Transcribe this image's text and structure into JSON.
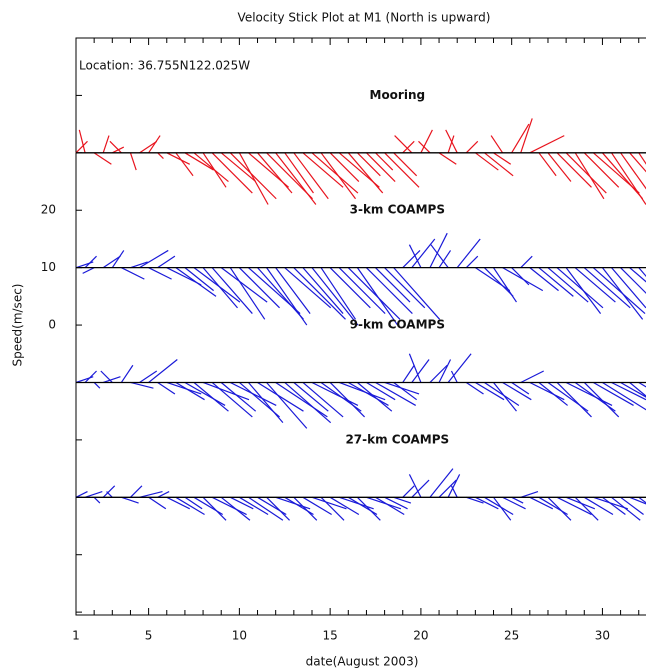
{
  "chart_data": {
    "type": "stick",
    "title": "Velocity Stick Plot at M1 (North is upward)",
    "annotation": "Location: 36.755N122.025W",
    "xlabel": "date(August 2003)",
    "ylabel": "Speed(m/sec)",
    "xlim": [
      1,
      32.4
    ],
    "ylim": [
      -50.5,
      50
    ],
    "xticks": [
      1,
      {
        "value": 2,
        "label": null
      },
      {
        "value": 3,
        "label": null
      },
      {
        "value": 4,
        "label": null
      },
      5,
      {
        "value": 6,
        "label": null
      },
      {
        "value": 7,
        "label": null
      },
      {
        "value": 8,
        "label": null
      },
      {
        "value": 9,
        "label": null
      },
      10,
      {
        "value": 11,
        "label": null
      },
      {
        "value": 12,
        "label": null
      },
      {
        "value": 13,
        "label": null
      },
      {
        "value": 14,
        "label": null
      },
      15,
      {
        "value": 16,
        "label": null
      },
      {
        "value": 17,
        "label": null
      },
      {
        "value": 18,
        "label": null
      },
      {
        "value": 19,
        "label": null
      },
      20,
      {
        "value": 21,
        "label": null
      },
      {
        "value": 22,
        "label": null
      },
      {
        "value": 23,
        "label": null
      },
      {
        "value": 24,
        "label": null
      },
      25,
      {
        "value": 26,
        "label": null
      },
      {
        "value": 27,
        "label": null
      },
      {
        "value": 28,
        "label": null
      },
      {
        "value": 29,
        "label": null
      },
      30,
      {
        "value": 31,
        "label": null
      },
      {
        "value": 32,
        "label": null
      }
    ],
    "yticks": [
      {
        "value": -50,
        "label": null
      },
      {
        "value": -40,
        "label": null
      },
      {
        "value": -30,
        "label": null
      },
      {
        "value": -20,
        "label": null
      },
      {
        "value": -10,
        "label": null
      },
      0,
      10,
      20,
      {
        "value": 30,
        "label": null
      },
      {
        "value": 40,
        "label": null
      }
    ],
    "x": [
      1,
      1.5,
      2,
      2.5,
      3,
      3.5,
      4,
      4.5,
      5,
      5.5,
      6,
      6.5,
      7,
      7.5,
      8,
      8.5,
      9,
      9.5,
      10,
      10.5,
      11,
      11.5,
      12,
      12.5,
      13,
      13.5,
      14,
      14.5,
      15,
      15.5,
      16,
      16.5,
      17,
      17.5,
      18,
      18.5,
      19,
      19.5,
      20,
      20.5,
      21,
      21.5,
      22,
      22.5,
      23,
      23.5,
      24,
      24.5,
      25,
      25.5,
      26,
      26.5,
      27,
      27.5,
      28,
      28.5,
      29,
      29.5,
      30,
      30.5,
      31,
      31.5,
      32
    ],
    "series": [
      {
        "name": "Mooring",
        "color": "#e8141e",
        "baseline": 30,
        "u": [
          2,
          -1,
          3,
          1,
          2,
          -2,
          1,
          3,
          2,
          1,
          4,
          3,
          5,
          6,
          4,
          7,
          6,
          8,
          5,
          7,
          6,
          8,
          7,
          5,
          6,
          7,
          8,
          6,
          5,
          7,
          6,
          4,
          5,
          3,
          6,
          4,
          2,
          -3,
          2,
          -2,
          3,
          1,
          -2,
          2,
          4,
          5,
          3,
          -2,
          3,
          2,
          6,
          3,
          4,
          6,
          7,
          5,
          6,
          8,
          7,
          6,
          5,
          7,
          6
        ],
        "v": [
          2,
          4,
          -2,
          3,
          1,
          2,
          -3,
          2,
          3,
          -1,
          -2,
          -4,
          -3,
          -5,
          -6,
          -7,
          -5,
          -8,
          -9,
          -6,
          -7,
          -8,
          -9,
          -7,
          -8,
          -6,
          -7,
          -8,
          -5,
          -6,
          -7,
          -4,
          -5,
          -3,
          -6,
          -4,
          2,
          3,
          4,
          2,
          -2,
          3,
          4,
          2,
          -3,
          -4,
          -2,
          3,
          5,
          6,
          3,
          -4,
          -5,
          -6,
          -7,
          -8,
          -6,
          -7,
          -8,
          -9,
          -7,
          -8,
          -9
        ]
      },
      {
        "name": "3-km COAMPS",
        "color": "#1a1ad8",
        "baseline": 10,
        "u": [
          3,
          2,
          -2,
          3,
          2,
          4,
          3,
          5,
          4,
          3,
          6,
          7,
          5,
          8,
          6,
          7,
          8,
          6,
          7,
          9,
          8,
          7,
          6,
          8,
          9,
          7,
          8,
          6,
          7,
          8,
          9,
          7,
          8,
          6,
          7,
          8,
          3,
          4,
          -2,
          3,
          2,
          -3,
          4,
          2,
          6,
          5,
          4,
          7,
          3,
          2,
          5,
          6,
          7,
          8,
          6,
          7,
          8,
          9,
          7,
          6,
          8,
          7,
          6
        ],
        "v": [
          1,
          2,
          -1,
          2,
          3,
          -2,
          1,
          3,
          -2,
          2,
          -3,
          -5,
          -4,
          -6,
          -7,
          -8,
          -6,
          -9,
          -7,
          -8,
          -9,
          -10,
          -8,
          -7,
          -9,
          -8,
          -10,
          -9,
          -7,
          -8,
          -9,
          -10,
          -8,
          -6,
          -7,
          -9,
          3,
          5,
          4,
          6,
          3,
          4,
          5,
          2,
          -4,
          -5,
          -6,
          -4,
          -3,
          2,
          -4,
          -5,
          -6,
          -7,
          -8,
          -6,
          -7,
          -8,
          -9,
          -7,
          -8,
          -6,
          -7
        ]
      },
      {
        "name": "9-km COAMPS",
        "color": "#1a1ad8",
        "baseline": -10,
        "u": [
          3,
          2,
          1,
          3,
          -2,
          2,
          4,
          3,
          5,
          3,
          6,
          5,
          7,
          6,
          8,
          7,
          6,
          8,
          7,
          6,
          8,
          7,
          9,
          8,
          6,
          7,
          8,
          7,
          6,
          8,
          7,
          6,
          5,
          7,
          6,
          4,
          2,
          3,
          -2,
          3,
          2,
          4,
          -1,
          3,
          5,
          6,
          4,
          5,
          3,
          4,
          6,
          5,
          7,
          6,
          8,
          7,
          6,
          7,
          8,
          6,
          7,
          6,
          5
        ],
        "v": [
          1,
          2,
          -1,
          1,
          2,
          3,
          -1,
          2,
          4,
          -2,
          -2,
          -3,
          -4,
          -5,
          -3,
          -6,
          -5,
          -4,
          -6,
          -7,
          -5,
          -8,
          -6,
          -7,
          -5,
          -6,
          -4,
          -5,
          -6,
          -3,
          -4,
          -5,
          -3,
          -4,
          -2,
          -3,
          3,
          4,
          5,
          3,
          4,
          5,
          2,
          -2,
          -3,
          -4,
          -5,
          -3,
          -2,
          2,
          -3,
          -4,
          -5,
          -6,
          -4,
          -5,
          -6,
          -4,
          -5,
          -3,
          -4,
          -5,
          -3
        ]
      },
      {
        "name": "27-km COAMPS",
        "color": "#1a1ad8",
        "baseline": -30,
        "u": [
          2,
          3,
          1,
          2,
          -1,
          3,
          2,
          4,
          3,
          2,
          4,
          5,
          3,
          5,
          4,
          6,
          5,
          4,
          5,
          6,
          5,
          4,
          6,
          5,
          4,
          5,
          6,
          4,
          5,
          6,
          5,
          4,
          6,
          5,
          4,
          3,
          2,
          3,
          -2,
          4,
          3,
          2,
          -1,
          3,
          4,
          5,
          3,
          4,
          2,
          3,
          4,
          5,
          4,
          6,
          5,
          4,
          5,
          6,
          4,
          5,
          4,
          5,
          4
        ],
        "v": [
          1,
          1,
          -1,
          2,
          1,
          -1,
          2,
          1,
          -2,
          1,
          -2,
          -3,
          -2,
          -3,
          -4,
          -3,
          -4,
          -2,
          -3,
          -4,
          -3,
          -4,
          -2,
          -3,
          -4,
          -3,
          -2,
          -4,
          -3,
          -2,
          -3,
          -4,
          -2,
          -3,
          -2,
          -1,
          2,
          3,
          4,
          5,
          3,
          4,
          2,
          -1,
          -2,
          -3,
          -4,
          -2,
          -1,
          1,
          -2,
          -3,
          -4,
          -3,
          -2,
          -4,
          -3,
          -2,
          -3,
          -4,
          -3,
          -2,
          -3
        ]
      }
    ]
  }
}
